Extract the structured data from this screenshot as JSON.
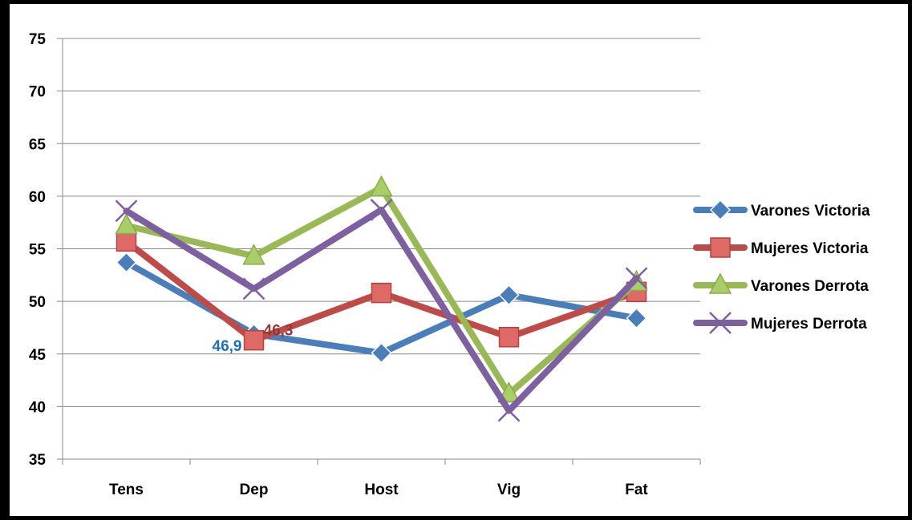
{
  "chart_data": {
    "type": "line",
    "title": "",
    "xlabel": "",
    "ylabel": "",
    "categories": [
      "Tens",
      "Dep",
      "Host",
      "Vig",
      "Fat"
    ],
    "ylim": [
      35,
      75
    ],
    "yticks": [
      "35",
      "40",
      "45",
      "50",
      "55",
      "60",
      "65",
      "70",
      "75"
    ],
    "grid": "horizontal",
    "legend_position": "right",
    "series": [
      {
        "name": "Varones Victoria",
        "values": [
          53.7,
          46.9,
          45.1,
          50.6,
          48.4
        ],
        "color": "#4a7ebb",
        "marker": "diamond"
      },
      {
        "name": "Mujeres Victoria",
        "values": [
          55.7,
          46.3,
          50.8,
          46.6,
          50.9
        ],
        "color": "#be4b48",
        "marker": "square"
      },
      {
        "name": "Varones Derrota",
        "values": [
          57.2,
          54.3,
          60.8,
          41.2,
          51.8
        ],
        "color": "#98b954",
        "marker": "triangle"
      },
      {
        "name": "Mujeres Derrota",
        "values": [
          58.6,
          51.2,
          58.7,
          39.6,
          52.2
        ],
        "color": "#7d60a0",
        "marker": "x"
      }
    ],
    "annotations": [
      {
        "text": "46,9",
        "series": "Varones Victoria",
        "category": "Dep",
        "color": "#1f6fb5"
      },
      {
        "text": "46,3",
        "series": "Mujeres Victoria",
        "category": "Dep",
        "color": "#953735"
      }
    ]
  }
}
